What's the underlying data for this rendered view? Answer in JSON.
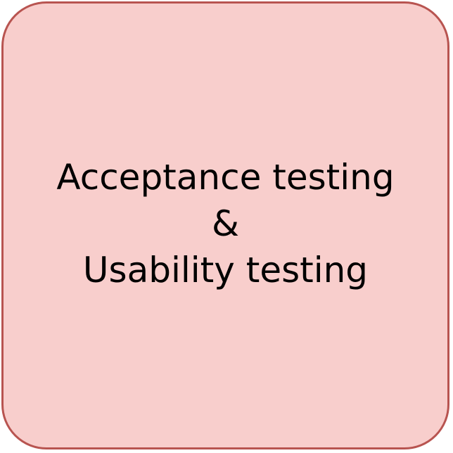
{
  "node": {
    "lines": [
      "Acceptance testing",
      "&",
      "Usability testing"
    ]
  },
  "colors": {
    "fill": "#f8cecc",
    "stroke": "#b85450",
    "text": "#000000"
  }
}
